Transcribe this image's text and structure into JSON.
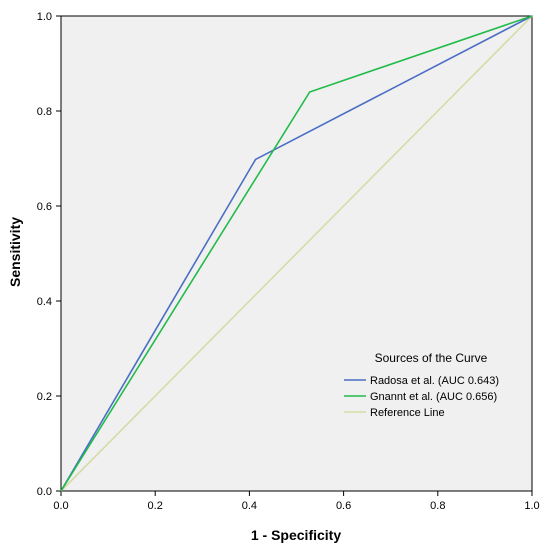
{
  "chart_data": {
    "type": "line",
    "title": "",
    "xlabel": "1 - Specificity",
    "ylabel": "Sensitivity",
    "xlim": [
      0,
      1
    ],
    "ylim": [
      0,
      1
    ],
    "x_ticks": [
      "0.0",
      "0.2",
      "0.4",
      "0.6",
      "0.8",
      "1.0"
    ],
    "y_ticks": [
      "0.0",
      "0.2",
      "0.4",
      "0.6",
      "0.8",
      "1.0"
    ],
    "grid": false,
    "plot_background": "#f0f0f0",
    "legend": {
      "title": "Sources of the Curve",
      "placement": "bottom-right"
    },
    "series": [
      {
        "name": "Radosa et al. (AUC 0.643)",
        "color": "#4a6fc4",
        "x": [
          0,
          0.413,
          1
        ],
        "y": [
          0,
          0.698,
          1
        ]
      },
      {
        "name": "Gnannt et al. (AUC 0.656)",
        "color": "#22bb4a",
        "x": [
          0,
          0.528,
          1
        ],
        "y": [
          0,
          0.84,
          1
        ]
      },
      {
        "name": "Reference Line",
        "color": "#d6dca6",
        "x": [
          0,
          1
        ],
        "y": [
          0,
          1
        ]
      }
    ]
  }
}
